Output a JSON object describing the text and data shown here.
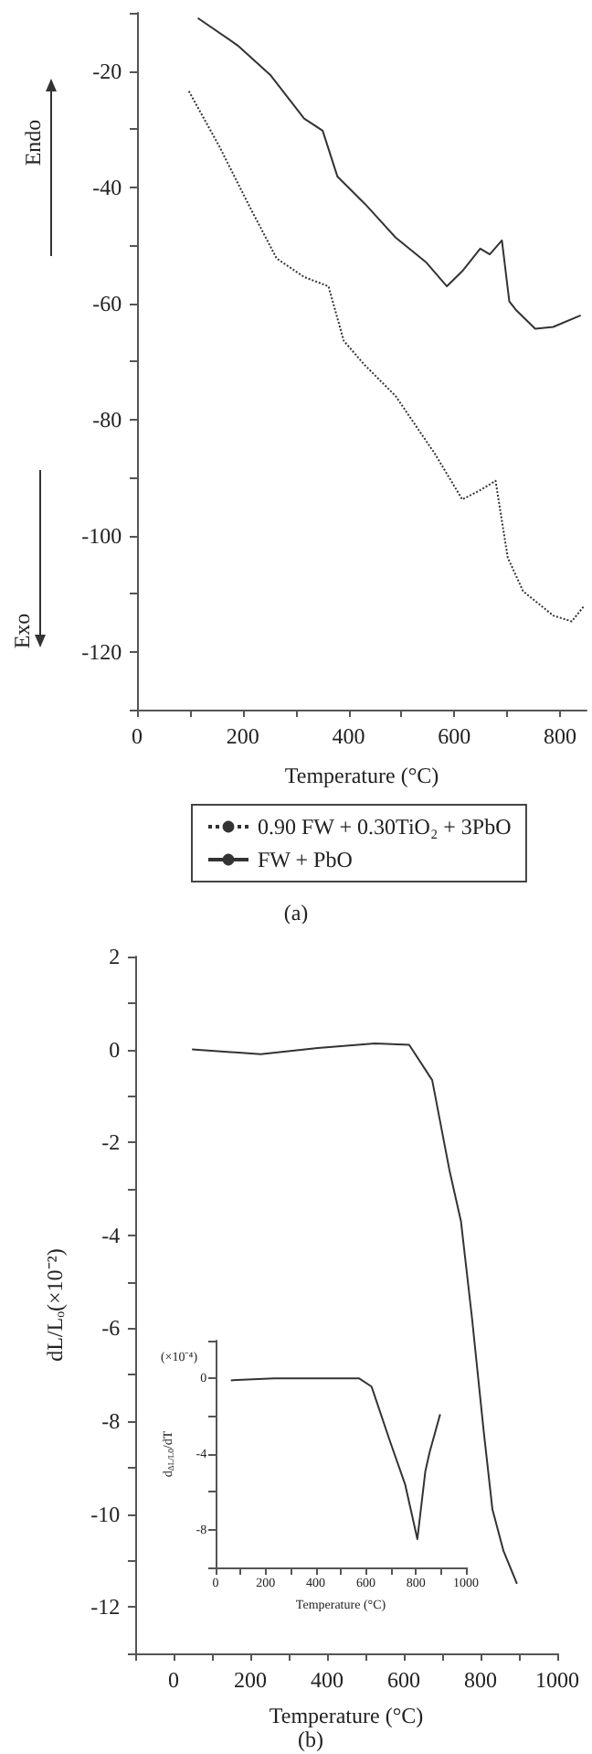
{
  "chart_data": [
    {
      "type": "line",
      "xlabel": "Temperature (°C)",
      "annotations": [
        "Endo",
        "Exo",
        "(a)"
      ],
      "xlim": [
        0,
        850
      ],
      "ylim": [
        -130,
        -10
      ],
      "xticks": [
        0,
        {
          "value": 100,
          "label": null
        },
        200,
        {
          "value": 300,
          "label": null
        },
        400,
        {
          "value": 500,
          "label": null
        },
        600,
        {
          "value": 700,
          "label": null
        },
        800
      ],
      "yticks": [
        {
          "value": -130,
          "label": null
        },
        -120,
        {
          "value": -110,
          "label": null
        },
        -100,
        {
          "value": -90,
          "label": null
        },
        -80,
        {
          "value": -70,
          "label": null
        },
        -60,
        {
          "value": -50,
          "label": null
        },
        -40,
        {
          "value": -30,
          "label": null
        },
        -20,
        {
          "value": -10,
          "label": null
        }
      ],
      "grid": false,
      "legend": "bottom",
      "marker": "none",
      "series": [
        {
          "name": "0.90 FW + 0.30TiO₂ + 3PbO",
          "color": "#333333",
          "line_style": "dotted",
          "x": [
            98,
            155,
            213,
            264,
            316,
            362,
            391,
            431,
            489,
            563,
            615,
            649,
            678,
            701,
            730,
            787,
            822,
            845
          ],
          "values": [
            -23.5,
            -32.9,
            -43.4,
            -52.3,
            -55.5,
            -57.1,
            -66.5,
            -70.7,
            -76.0,
            -85.9,
            -93.8,
            -92.2,
            -90.6,
            -103.8,
            -109.6,
            -113.8,
            -114.8,
            -112.2
          ]
        },
        {
          "name": "FW + PbO",
          "color": "#333333",
          "line_style": "solid",
          "x": [
            115,
            190,
            253,
            316,
            351,
            379,
            431,
            489,
            546,
            586,
            615,
            649,
            667,
            690,
            704,
            718,
            753,
            787,
            839
          ],
          "values": [
            -10.9,
            -15.6,
            -20.8,
            -28.2,
            -30.3,
            -38.2,
            -42.9,
            -48.7,
            -52.9,
            -57.1,
            -54.5,
            -50.6,
            -51.6,
            -49.2,
            -59.7,
            -61.3,
            -64.4,
            -64.1,
            -62.1
          ]
        }
      ]
    },
    {
      "type": "line",
      "xlabel": "Temperature (°C)",
      "ylabel": "dL/Lₒ(×10⁻²)",
      "annotations": [
        "(b)"
      ],
      "xlim": [
        -100,
        1000
      ],
      "ylim": [
        -13,
        2
      ],
      "xticks": [
        {
          "value": -100,
          "label": null
        },
        0,
        {
          "value": 100,
          "label": null
        },
        200,
        {
          "value": 300,
          "label": null
        },
        400,
        {
          "value": 500,
          "label": null
        },
        600,
        {
          "value": 700,
          "label": null
        },
        800,
        {
          "value": 900,
          "label": null
        },
        1000
      ],
      "yticks": [
        {
          "value": -13,
          "label": null
        },
        -12,
        {
          "value": -11,
          "label": null
        },
        -10,
        {
          "value": -9,
          "label": null
        },
        -8,
        {
          "value": -7,
          "label": null
        },
        -6,
        {
          "value": -5,
          "label": null
        },
        -4,
        {
          "value": -3,
          "label": null
        },
        -2,
        {
          "value": -1,
          "label": null
        },
        0,
        {
          "value": 1,
          "label": null
        },
        2
      ],
      "grid": false,
      "marker": "none",
      "series": [
        {
          "color": "#333333",
          "line_style": "solid",
          "x": [
            48,
            227,
            376,
            525,
            614,
            674,
            719,
            749,
            778,
            808,
            831,
            860,
            895
          ],
          "values": [
            0,
            -0.1,
            0.03,
            0.13,
            0.1,
            -0.66,
            -2.6,
            -3.7,
            -5.8,
            -8.2,
            -9.9,
            -10.8,
            -11.5
          ]
        }
      ]
    },
    {
      "type": "line",
      "xlabel": "Temperature (°C)",
      "ylabel": "d$_{ΔL/L0}$/dT",
      "annotations": [
        "(×10⁻⁴)"
      ],
      "xlim": [
        0,
        1000
      ],
      "ylim": [
        -10,
        2
      ],
      "xticks": [
        0,
        {
          "value": 100,
          "label": null
        },
        200,
        {
          "value": 300,
          "label": null
        },
        400,
        {
          "value": 500,
          "label": null
        },
        600,
        {
          "value": 700,
          "label": null
        },
        800,
        {
          "value": 900,
          "label": null
        },
        1000
      ],
      "yticks": [
        {
          "value": -10,
          "label": null
        },
        -8,
        {
          "value": -6,
          "label": null
        },
        -4,
        {
          "value": -2,
          "label": null
        },
        0,
        {
          "value": 2,
          "label": null
        }
      ],
      "grid": false,
      "marker": "none",
      "series": [
        {
          "color": "#333333",
          "line_style": "solid",
          "x": [
            61,
            233,
            574,
            623,
            696,
            757,
            806,
            838,
            855,
            897
          ],
          "values": [
            -0.1,
            0,
            0,
            -0.43,
            -3.3,
            -5.6,
            -8.5,
            -4.9,
            -3.9,
            -1.9
          ]
        }
      ]
    }
  ]
}
